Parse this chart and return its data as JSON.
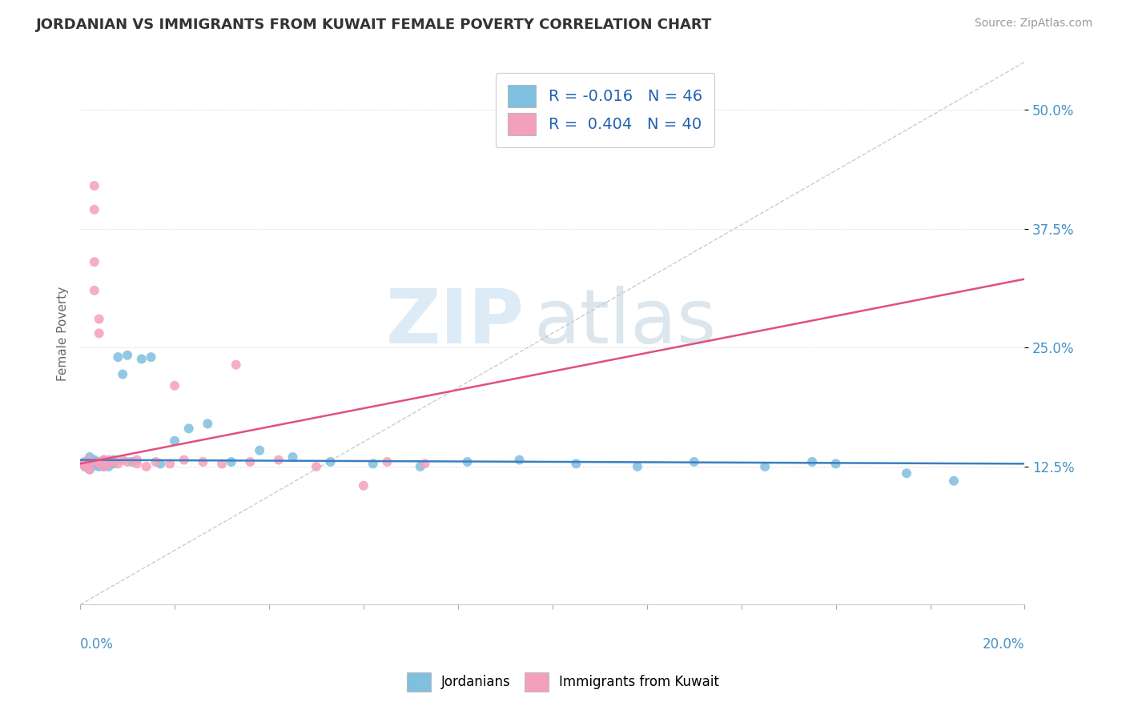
{
  "title": "JORDANIAN VS IMMIGRANTS FROM KUWAIT FEMALE POVERTY CORRELATION CHART",
  "source": "Source: ZipAtlas.com",
  "ylabel": "Female Poverty",
  "yticks": [
    0.125,
    0.25,
    0.375,
    0.5
  ],
  "ytick_labels": [
    "12.5%",
    "25.0%",
    "37.5%",
    "50.0%"
  ],
  "xlim": [
    0.0,
    0.2
  ],
  "ylim": [
    -0.02,
    0.55
  ],
  "legend_label1": "Jordanians",
  "legend_label2": "Immigrants from Kuwait",
  "R1": "-0.016",
  "N1": "46",
  "R2": "0.404",
  "N2": "40",
  "blue_color": "#7fbfdf",
  "pink_color": "#f4a0bc",
  "trend_blue": "#3a7fc1",
  "trend_pink": "#e05080",
  "diag_color": "#cccccc",
  "watermark_zip": "ZIP",
  "watermark_atlas": "atlas",
  "background_color": "#ffffff",
  "jordanians_x": [
    0.001,
    0.001,
    0.002,
    0.002,
    0.002,
    0.003,
    0.003,
    0.003,
    0.003,
    0.004,
    0.004,
    0.004,
    0.005,
    0.005,
    0.005,
    0.005,
    0.006,
    0.006,
    0.007,
    0.007,
    0.008,
    0.009,
    0.01,
    0.011,
    0.013,
    0.015,
    0.017,
    0.02,
    0.023,
    0.027,
    0.032,
    0.038,
    0.045,
    0.053,
    0.062,
    0.072,
    0.082,
    0.093,
    0.105,
    0.118,
    0.13,
    0.145,
    0.16,
    0.155,
    0.175,
    0.185
  ],
  "jordanians_y": [
    0.13,
    0.125,
    0.135,
    0.128,
    0.122,
    0.132,
    0.128,
    0.126,
    0.13,
    0.125,
    0.128,
    0.13,
    0.132,
    0.128,
    0.125,
    0.13,
    0.128,
    0.125,
    0.132,
    0.128,
    0.24,
    0.222,
    0.242,
    0.13,
    0.238,
    0.24,
    0.128,
    0.152,
    0.165,
    0.17,
    0.13,
    0.142,
    0.135,
    0.13,
    0.128,
    0.125,
    0.13,
    0.132,
    0.128,
    0.125,
    0.13,
    0.125,
    0.128,
    0.13,
    0.118,
    0.11
  ],
  "kuwait_x": [
    0.001,
    0.001,
    0.001,
    0.002,
    0.002,
    0.002,
    0.003,
    0.003,
    0.003,
    0.003,
    0.004,
    0.004,
    0.004,
    0.005,
    0.005,
    0.005,
    0.006,
    0.006,
    0.007,
    0.008,
    0.009,
    0.01,
    0.012,
    0.014,
    0.016,
    0.019,
    0.022,
    0.026,
    0.03,
    0.036,
    0.042,
    0.05,
    0.06,
    0.065,
    0.073,
    0.033,
    0.02,
    0.012,
    0.007,
    0.004
  ],
  "kuwait_y": [
    0.13,
    0.125,
    0.128,
    0.132,
    0.128,
    0.122,
    0.42,
    0.395,
    0.34,
    0.31,
    0.28,
    0.265,
    0.13,
    0.132,
    0.13,
    0.125,
    0.128,
    0.132,
    0.13,
    0.128,
    0.132,
    0.13,
    0.128,
    0.125,
    0.13,
    0.128,
    0.132,
    0.13,
    0.128,
    0.13,
    0.132,
    0.125,
    0.105,
    0.13,
    0.128,
    0.232,
    0.21,
    0.132,
    0.13,
    0.128
  ]
}
